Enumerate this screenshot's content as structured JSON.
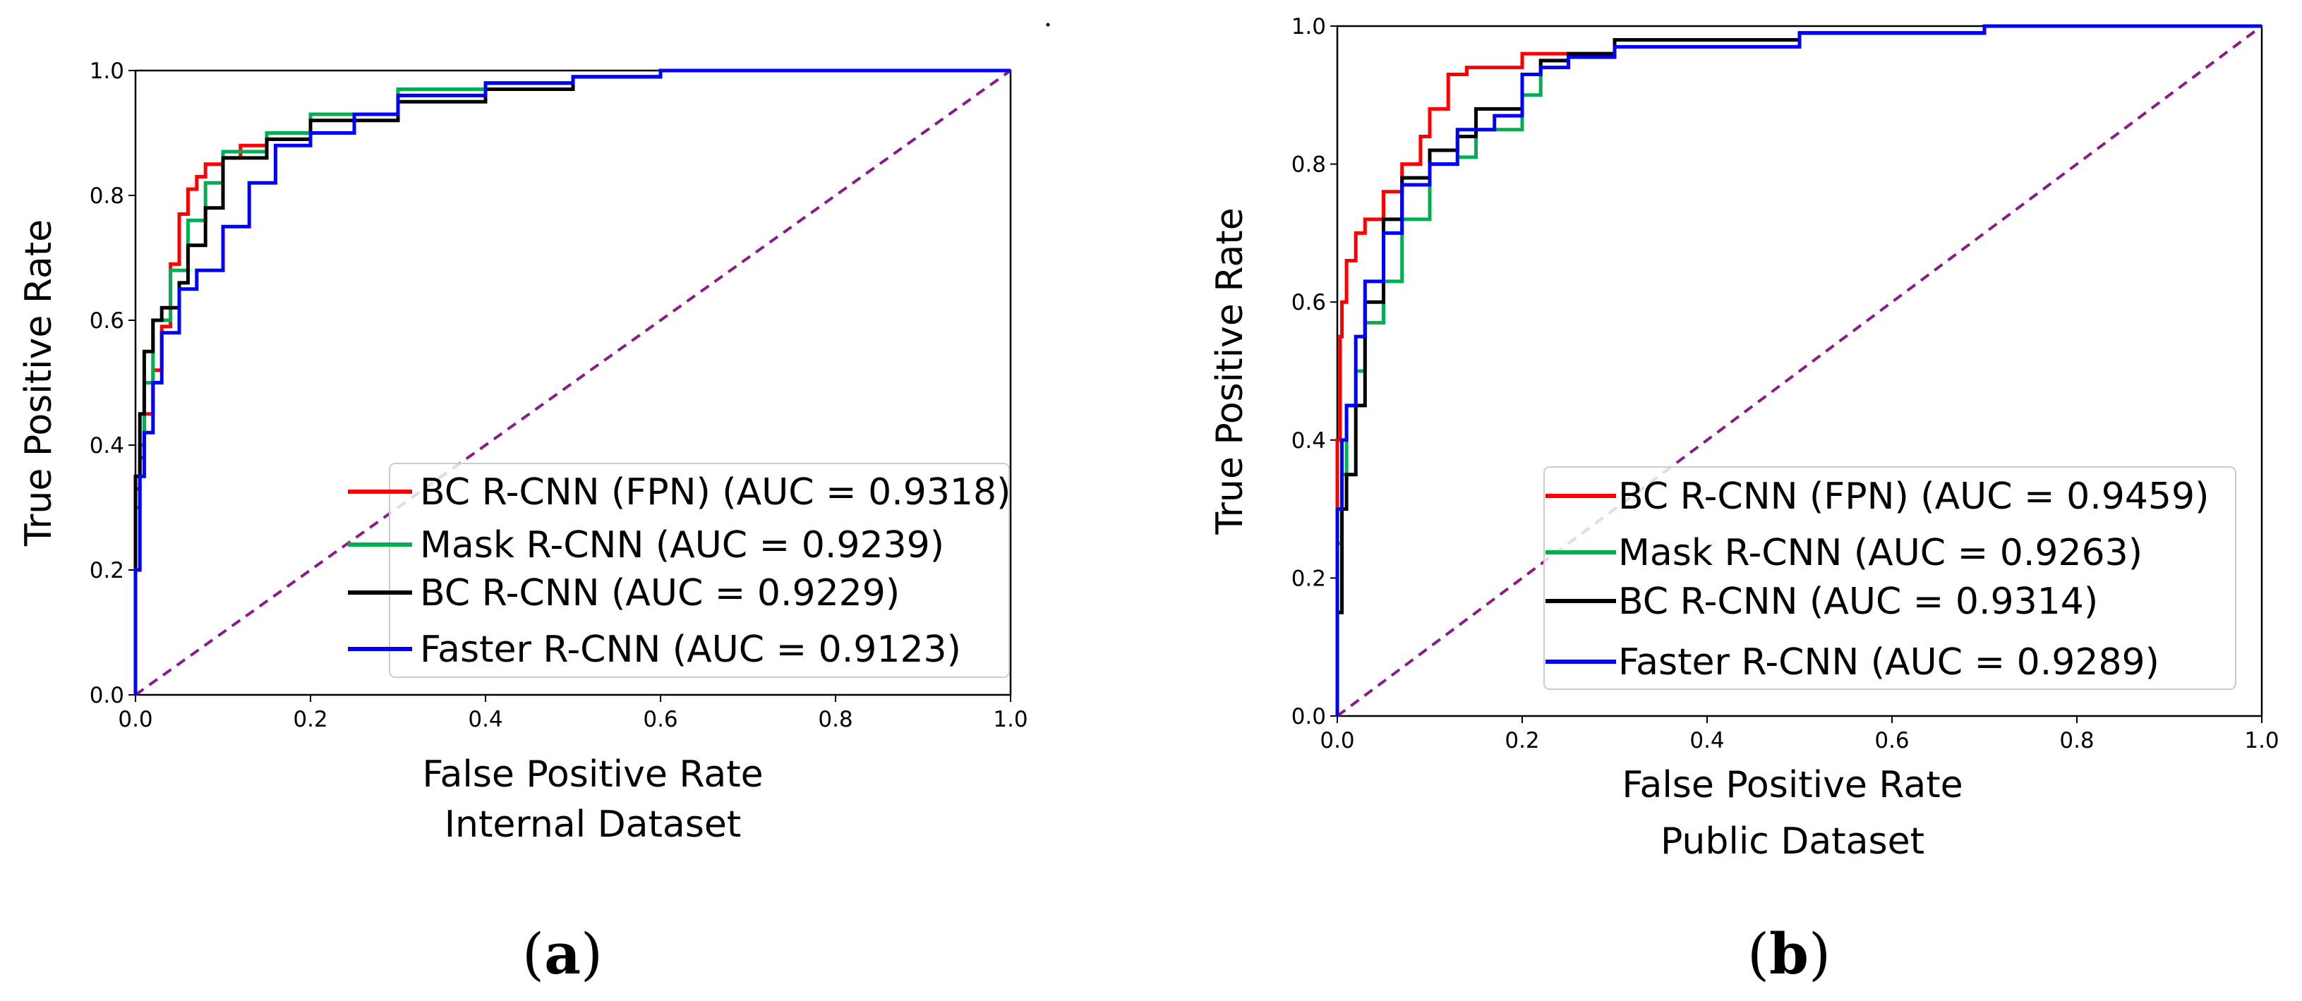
{
  "figure": {
    "captions": [
      "(a)",
      "(b)"
    ]
  },
  "chart_data": [
    {
      "type": "line",
      "title": "",
      "xlabel": "False Positive Rate",
      "subtitle": "Internal Dataset",
      "ylabel": "True Positive Rate",
      "xlim": [
        0.0,
        1.0
      ],
      "ylim": [
        0.0,
        1.0
      ],
      "xticks": [
        "0.0",
        "0.2",
        "0.4",
        "0.6",
        "0.8",
        "1.0"
      ],
      "yticks": [
        "0.0",
        "0.2",
        "0.4",
        "0.6",
        "0.8",
        "1.0"
      ],
      "grid": false,
      "legend_position": "lower-right",
      "diagonal": {
        "name": "chance",
        "color": "#8B1A8B",
        "x": [
          0,
          1
        ],
        "y": [
          0,
          1
        ]
      },
      "series": [
        {
          "name": "BC R-CNN (FPN) (AUC = 0.9318)",
          "color": "#ff0000",
          "x": [
            0,
            0.005,
            0.01,
            0.02,
            0.03,
            0.04,
            0.05,
            0.06,
            0.07,
            0.08,
            0.1,
            0.12,
            0.15,
            0.2,
            0.3,
            0.4,
            0.5,
            0.6,
            0.8,
            1.0
          ],
          "y": [
            0,
            0.33,
            0.38,
            0.45,
            0.52,
            0.59,
            0.69,
            0.77,
            0.81,
            0.83,
            0.85,
            0.86,
            0.88,
            0.89,
            0.93,
            0.96,
            0.98,
            0.99,
            1.0,
            1.0
          ]
        },
        {
          "name": "Mask R-CNN (AUC = 0.9239)",
          "color": "#00b050",
          "x": [
            0,
            0.005,
            0.01,
            0.02,
            0.04,
            0.06,
            0.08,
            0.1,
            0.15,
            0.2,
            0.3,
            0.4,
            0.5,
            0.6,
            0.8,
            1.0
          ],
          "y": [
            0,
            0.3,
            0.4,
            0.5,
            0.6,
            0.68,
            0.76,
            0.82,
            0.87,
            0.9,
            0.93,
            0.97,
            0.98,
            0.99,
            1.0,
            1.0
          ]
        },
        {
          "name": "BC R-CNN (AUC = 0.9229)",
          "color": "#000000",
          "x": [
            0,
            0.005,
            0.01,
            0.02,
            0.03,
            0.05,
            0.06,
            0.08,
            0.1,
            0.15,
            0.2,
            0.3,
            0.4,
            0.5,
            0.6,
            0.8,
            1.0
          ],
          "y": [
            0,
            0.35,
            0.45,
            0.55,
            0.6,
            0.62,
            0.66,
            0.72,
            0.78,
            0.86,
            0.89,
            0.92,
            0.95,
            0.97,
            0.99,
            1.0,
            1.0
          ]
        },
        {
          "name": "Faster R-CNN (AUC = 0.9123)",
          "color": "#0000ff",
          "x": [
            0,
            0.005,
            0.01,
            0.02,
            0.03,
            0.05,
            0.07,
            0.1,
            0.13,
            0.16,
            0.2,
            0.25,
            0.3,
            0.4,
            0.5,
            0.6,
            0.8,
            1.0
          ],
          "y": [
            0,
            0.2,
            0.35,
            0.42,
            0.5,
            0.58,
            0.65,
            0.68,
            0.75,
            0.82,
            0.88,
            0.9,
            0.93,
            0.96,
            0.98,
            0.99,
            1.0,
            1.0
          ]
        }
      ]
    },
    {
      "type": "line",
      "title": "",
      "xlabel": "False Positive Rate",
      "subtitle": "Public Dataset",
      "ylabel": "True Positive Rate",
      "xlim": [
        0.0,
        1.0
      ],
      "ylim": [
        0.0,
        1.0
      ],
      "xticks": [
        "0.0",
        "0.2",
        "0.4",
        "0.6",
        "0.8",
        "1.0"
      ],
      "yticks": [
        "0.0",
        "0.2",
        "0.4",
        "0.6",
        "0.8",
        "1.0"
      ],
      "grid": false,
      "legend_position": "lower-right",
      "diagonal": {
        "name": "chance",
        "color": "#8B1A8B",
        "x": [
          0,
          1
        ],
        "y": [
          0,
          1
        ]
      },
      "series": [
        {
          "name": "BC R-CNN (FPN) (AUC = 0.9459)",
          "color": "#ff0000",
          "x": [
            0,
            0.003,
            0.005,
            0.01,
            0.02,
            0.03,
            0.05,
            0.07,
            0.09,
            0.1,
            0.12,
            0.14,
            0.2,
            0.3,
            0.5,
            0.7,
            1.0
          ],
          "y": [
            0,
            0.4,
            0.55,
            0.6,
            0.66,
            0.7,
            0.72,
            0.76,
            0.8,
            0.84,
            0.88,
            0.93,
            0.94,
            0.96,
            0.98,
            0.99,
            1.0
          ]
        },
        {
          "name": "Mask R-CNN (AUC = 0.9263)",
          "color": "#00b050",
          "x": [
            0,
            0.005,
            0.01,
            0.02,
            0.03,
            0.05,
            0.07,
            0.1,
            0.13,
            0.15,
            0.2,
            0.22,
            0.25,
            0.3,
            0.5,
            0.7,
            1.0
          ],
          "y": [
            0,
            0.25,
            0.35,
            0.45,
            0.5,
            0.57,
            0.63,
            0.72,
            0.8,
            0.81,
            0.85,
            0.9,
            0.95,
            0.96,
            0.98,
            0.99,
            1.0
          ]
        },
        {
          "name": "BC R-CNN (AUC = 0.9314)",
          "color": "#000000",
          "x": [
            0,
            0.005,
            0.01,
            0.02,
            0.03,
            0.05,
            0.07,
            0.1,
            0.13,
            0.15,
            0.2,
            0.22,
            0.25,
            0.3,
            0.5,
            0.7,
            1.0
          ],
          "y": [
            0,
            0.15,
            0.3,
            0.35,
            0.45,
            0.6,
            0.72,
            0.78,
            0.82,
            0.84,
            0.88,
            0.93,
            0.95,
            0.96,
            0.98,
            0.99,
            1.0
          ]
        },
        {
          "name": "Faster R-CNN (AUC = 0.9289)",
          "color": "#0000ff",
          "x": [
            0,
            0.005,
            0.01,
            0.02,
            0.03,
            0.05,
            0.07,
            0.1,
            0.13,
            0.17,
            0.2,
            0.22,
            0.25,
            0.3,
            0.5,
            0.7,
            1.0
          ],
          "y": [
            0,
            0.3,
            0.4,
            0.45,
            0.55,
            0.63,
            0.7,
            0.77,
            0.8,
            0.85,
            0.87,
            0.93,
            0.94,
            0.955,
            0.97,
            0.99,
            1.0
          ]
        }
      ]
    }
  ]
}
